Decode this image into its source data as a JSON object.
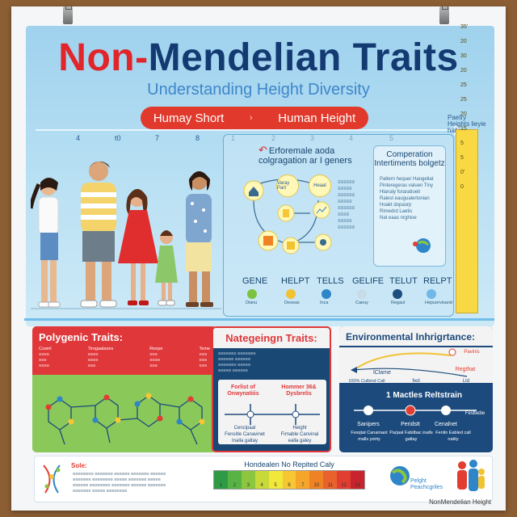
{
  "title": {
    "part1": "Non-",
    "part2": "Mendelian Traits"
  },
  "subtitle": "Understanding Height Diversity",
  "banner": {
    "left": "Humay Short",
    "right": "Human Height"
  },
  "axis_ticks_left": [
    "4",
    "t0",
    "7",
    "8"
  ],
  "axis_ticks_right": [
    "1",
    "2",
    "3",
    "4",
    "5"
  ],
  "diagram": {
    "title_line1": "Erforemale aoda",
    "title_line2": "colgragation ar I geners",
    "node1": "Varay Part",
    "node2": "Heaal",
    "comparison_title": "Comperation Intertiments bolgetz",
    "comparison_lines": [
      "Paltern hequer Hangellat",
      "Pinteregeras valuen Tiny",
      "Hlanaly foraratioeit",
      "Ralest eaugualertonian",
      "Hoakt dopaorp",
      "Rimedrd Laetis",
      "Nat eaas nrghioe"
    ]
  },
  "legend": {
    "headers": [
      "GENE",
      "HELPT",
      "TELLS",
      "GELIFE",
      "TELUT",
      "RELPT"
    ],
    "dots": [
      {
        "label": "Dianu",
        "color": "#7cc23f"
      },
      {
        "label": "Deseas",
        "color": "#f1c232"
      },
      {
        "label": "Inca",
        "color": "#2e86c9"
      },
      {
        "label": "Caeuy",
        "color": "#c7dce8"
      },
      {
        "label": "Regaul",
        "color": "#1c4e80"
      },
      {
        "label": "Hepuorvisand",
        "color": "#6fb8e8"
      }
    ]
  },
  "ruler": {
    "label": "Paetry Heights lieyie halls",
    "numbers": [
      "35'",
      "20",
      "30",
      "20",
      "25",
      "25",
      "20",
      "15",
      "5",
      "5",
      "0'",
      "0"
    ]
  },
  "panels": {
    "polygenic": {
      "title": "Polygenic Traits:",
      "cols": [
        "Czaml",
        "Tirogaalaoes",
        "Reepe",
        "Teme"
      ]
    },
    "nategeign": {
      "title": "Nategeingn Traits:",
      "left_label": "Forlist of Onwynatiiis",
      "right_label": "Hommer 36& Dysbrelis",
      "captions": [
        "Cencipaal",
        "Height",
        "Fensitle Canavinet Inalla galtay",
        "Firnable Canvinal ealla galey"
      ]
    },
    "environmental": {
      "title": "Environmental Inhrigrtance:",
      "top_labels": [
        "lClame",
        "100% Culbind Call",
        "fwd",
        "Ltd"
      ],
      "right_badge": "Regthat",
      "mid_label": "1 Mactles Reltstrain",
      "captions": [
        "Sanipers",
        "Peridstt",
        "Cenalnet",
        "Fesltedie"
      ],
      "footer_captions": [
        "Fesqtat Canamaot malls yoirty",
        "Parjaal Fabilbac inalls galtay",
        "Fenlin Eabled call natity"
      ]
    }
  },
  "footer": {
    "sole_label": "Sole:",
    "bar_title": "Hondealen No Repited Caly",
    "bar_numbers": [
      "1",
      "2",
      "3",
      "4",
      "5",
      "6",
      "7",
      "10",
      "11",
      "12",
      "13"
    ],
    "bar_colors": [
      "#2e9a45",
      "#58b345",
      "#8cc63f",
      "#c8d93a",
      "#f1e83b",
      "#f6c633",
      "#f4a52a",
      "#ef8225",
      "#e9612b",
      "#e13d31",
      "#c8242d"
    ],
    "globe_label": "Pelght Peachcgriles",
    "credit": "NonMendelian Height"
  }
}
